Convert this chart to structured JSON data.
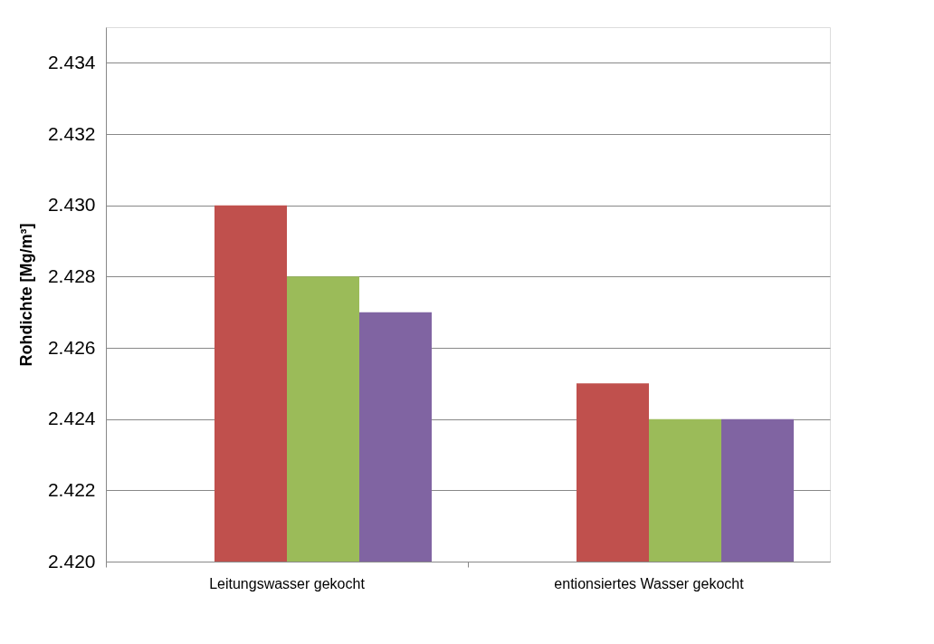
{
  "chart_data": {
    "type": "bar",
    "ylabel": "Rohdichte [Mg/m³]",
    "categories": [
      "Leitungswasser gekocht",
      "entionsiertes Wasser gekocht"
    ],
    "series": [
      {
        "color": "#4f81bd",
        "values": [
          null,
          null
        ]
      },
      {
        "color": "#c0504d",
        "values": [
          2.43,
          2.425
        ]
      },
      {
        "color": "#9bbb59",
        "values": [
          2.428,
          2.424
        ]
      },
      {
        "color": "#8064a2",
        "values": [
          2.427,
          2.424
        ]
      }
    ],
    "ylim": [
      2.42,
      2.435
    ],
    "yticks": [
      {
        "value": 2.42,
        "label": "2.420"
      },
      {
        "value": 2.422,
        "label": "2.422"
      },
      {
        "value": 2.424,
        "label": "2.424"
      },
      {
        "value": 2.426,
        "label": "2.426"
      },
      {
        "value": 2.428,
        "label": "2.428"
      },
      {
        "value": 2.43,
        "label": "2.430"
      },
      {
        "value": 2.432,
        "label": "2.432"
      },
      {
        "value": 2.434,
        "label": "2.434"
      }
    ],
    "grid": "y",
    "legend": false
  }
}
